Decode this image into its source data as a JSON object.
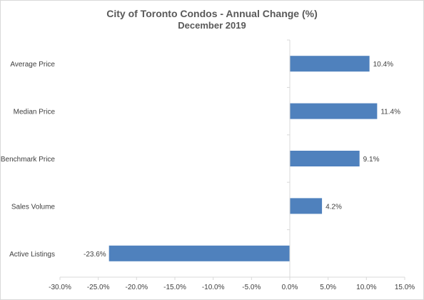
{
  "chart_data": {
    "type": "bar",
    "orientation": "horizontal",
    "title": "City of Toronto Condos - Annual Change (%)",
    "subtitle": "December 2019",
    "categories": [
      "Average Price",
      "Median Price",
      "Benchmark Price",
      "Sales Volume",
      "Active Listings"
    ],
    "values": [
      10.4,
      11.4,
      9.1,
      4.2,
      -23.6
    ],
    "data_labels": [
      "10.4%",
      "11.4%",
      "9.1%",
      "4.2%",
      "-23.6%"
    ],
    "xlim": [
      -30,
      15
    ],
    "x_ticks": [
      -30,
      -25,
      -20,
      -15,
      -10,
      -5,
      0,
      5,
      10,
      15
    ],
    "x_tick_labels": [
      "-30.0%",
      "-25.0%",
      "-20.0%",
      "-15.0%",
      "-10.0%",
      "-5.0%",
      "0.0%",
      "5.0%",
      "10.0%",
      "15.0%"
    ],
    "xlabel": "",
    "ylabel": "",
    "grid": false,
    "legend": "none",
    "bar_color": "#4f81bd",
    "axis_color": "#d9d9d9"
  }
}
